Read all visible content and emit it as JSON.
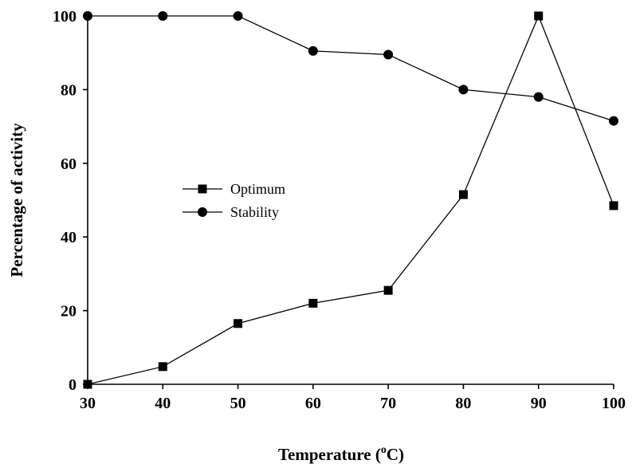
{
  "chart_data": {
    "type": "line",
    "x": [
      30,
      40,
      50,
      60,
      70,
      80,
      90,
      100
    ],
    "series": [
      {
        "name": "Optimum",
        "marker": "square",
        "values": [
          0,
          4.8,
          16.5,
          22,
          25.5,
          51.5,
          100,
          48.5
        ]
      },
      {
        "name": "Stability",
        "marker": "circle",
        "values": [
          100,
          100,
          100,
          90.5,
          89.5,
          80,
          78,
          71.5
        ]
      }
    ],
    "title": "",
    "xlabel": "Temperature (",
    "xlabel_sup": "o",
    "xlabel_suffix": "C)",
    "ylabel": "Percentage of activity",
    "xlim": [
      30,
      100
    ],
    "ylim": [
      0,
      100
    ],
    "xticks": [
      "30",
      "40",
      "50",
      "60",
      "70",
      "80",
      "90",
      "100"
    ],
    "yticks": [
      "0",
      "20",
      "40",
      "60",
      "80",
      "100"
    ],
    "grid": false,
    "legend_position": "center-left",
    "colors": {
      "line": "#000000",
      "marker": "#000000",
      "axis": "#000000"
    }
  }
}
